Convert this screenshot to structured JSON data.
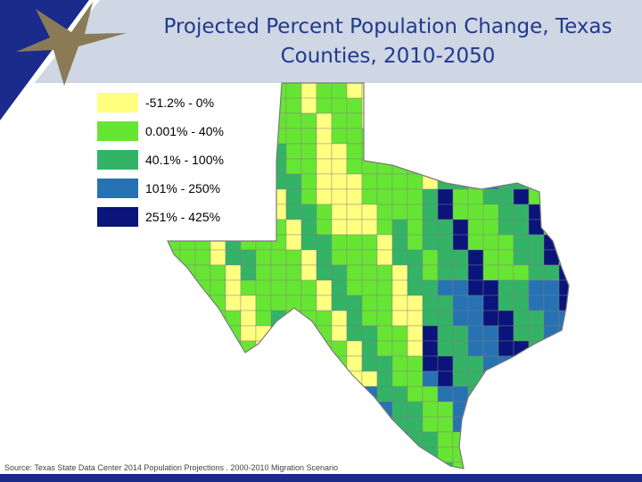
{
  "slide": {
    "title": "Projected Percent Population Change, Texas Counties, 2010-2050",
    "source": "Source: Texas State Data Center 2014 Population Projections . 2000-2010 Migration Scenario"
  },
  "legend": {
    "items": [
      {
        "label": "-51.2% - 0%",
        "color": "#ffff80"
      },
      {
        "label": "0.001% - 40%",
        "color": "#66e633"
      },
      {
        "label": "40.1% - 100%",
        "color": "#33b366"
      },
      {
        "label": "101% - 250%",
        "color": "#2672b3"
      },
      {
        "label": "251% - 425%",
        "color": "#0a147a"
      }
    ]
  },
  "colors": {
    "header_band": "#cfd6e4",
    "corner_navy": "#1a2b8c",
    "star_gold": "#8a7a55",
    "title_text": "#1f3a8f",
    "county_border": "#808080"
  }
}
